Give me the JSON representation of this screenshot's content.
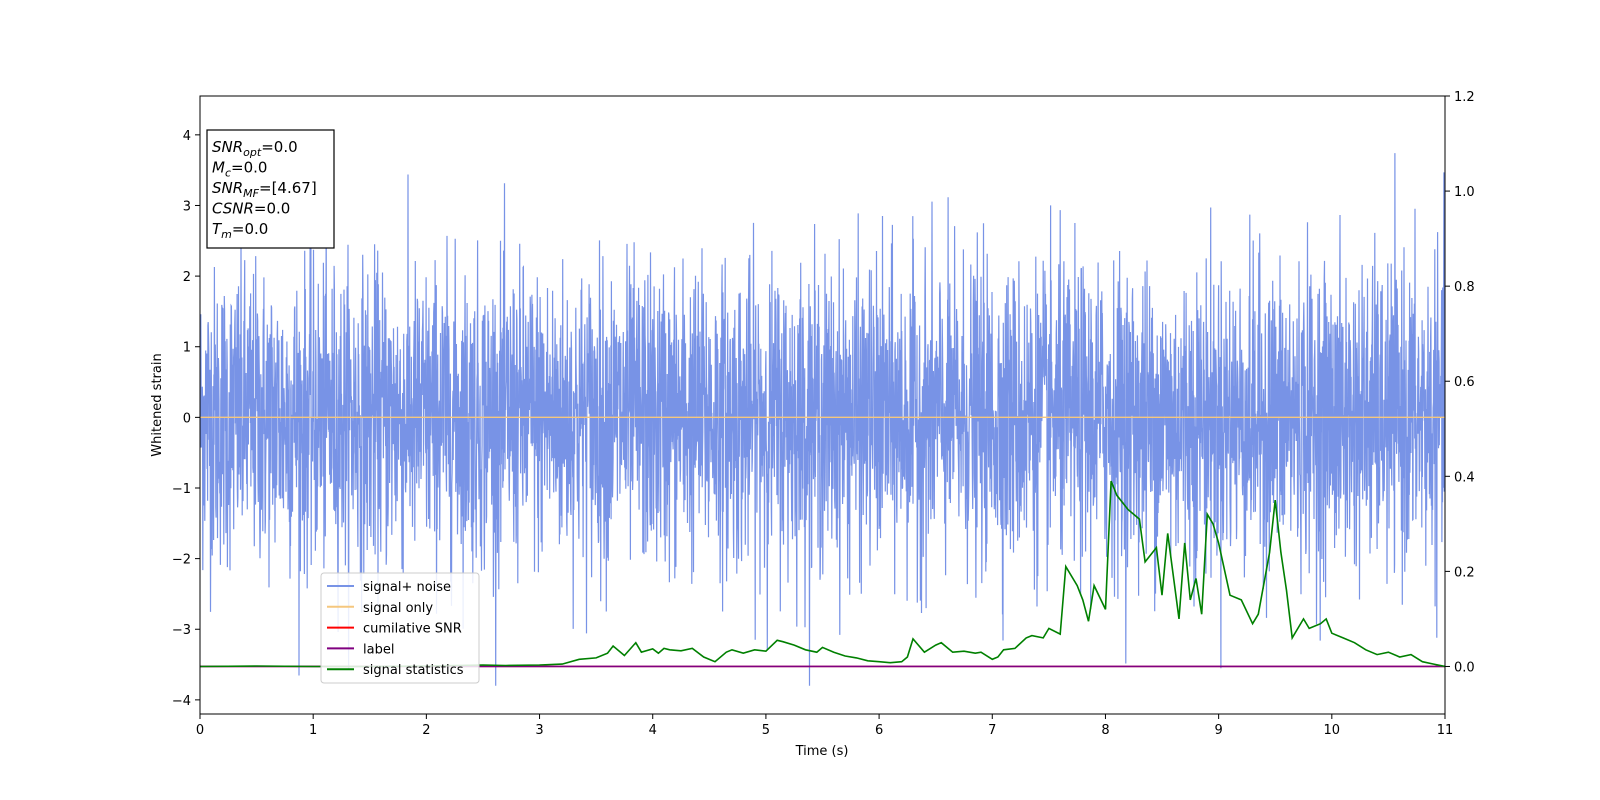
{
  "chart_data": {
    "type": "line",
    "xlabel": "Time (s)",
    "ylabel": "Whitened strain",
    "xlim": [
      0,
      11
    ],
    "ylim": [
      -4.2,
      4.55
    ],
    "ylim_right": [
      -0.1,
      1.2
    ],
    "xticks": [
      0,
      1,
      2,
      3,
      4,
      5,
      6,
      7,
      8,
      9,
      10,
      11
    ],
    "yticks": [
      -4,
      -3,
      -2,
      -1,
      0,
      1,
      2,
      3,
      4
    ],
    "yticks_right": [
      "0.0",
      "0.2",
      "0.4",
      "0.6",
      "0.8",
      "1.0",
      "1.2"
    ],
    "yticks_right_values": [
      0.0,
      0.2,
      0.4,
      0.6,
      0.8,
      1.0,
      1.2
    ],
    "grid": false,
    "legend_placement": "lower-left",
    "annotation": {
      "lines": [
        {
          "sym": "SNR",
          "sub": "opt",
          "val": "=0.0"
        },
        {
          "sym": "M",
          "sub": "c",
          "val": "=0.0"
        },
        {
          "sym": "SNR",
          "sub": "MF",
          "val": "=[4.67]"
        },
        {
          "sym": "CSNR",
          "sub": "",
          "val": "=0.0"
        },
        {
          "sym": "T",
          "sub": "m",
          "val": "=0.0"
        }
      ]
    },
    "series": [
      {
        "name": "signal+ noise",
        "color": "#7893e6",
        "axis": "left",
        "kind": "noise",
        "sample_rate_hz": 400,
        "peak_range": [
          -3.8,
          4.18
        ]
      },
      {
        "name": "signal only",
        "color": "#f5c77e",
        "axis": "left",
        "x": [
          0,
          11
        ],
        "y": [
          0,
          0
        ]
      },
      {
        "name": "cumilative SNR",
        "color": "#ff0000",
        "axis": "right",
        "x": [
          0,
          11
        ],
        "y": [
          0,
          0
        ]
      },
      {
        "name": "label",
        "color": "#800080",
        "axis": "right",
        "x": [
          0,
          11
        ],
        "y": [
          0,
          0
        ]
      },
      {
        "name": "signal statistics",
        "color": "#008000",
        "axis": "right",
        "x": [
          0,
          0.5,
          1,
          1.5,
          2,
          2.5,
          2.7,
          3,
          3.2,
          3.35,
          3.5,
          3.6,
          3.65,
          3.75,
          3.85,
          3.9,
          4.0,
          4.05,
          4.1,
          4.15,
          4.25,
          4.35,
          4.45,
          4.55,
          4.65,
          4.7,
          4.8,
          4.9,
          5.0,
          5.1,
          5.15,
          5.25,
          5.35,
          5.45,
          5.5,
          5.6,
          5.7,
          5.8,
          5.9,
          6.0,
          6.1,
          6.2,
          6.25,
          6.3,
          6.4,
          6.5,
          6.55,
          6.65,
          6.75,
          6.85,
          6.9,
          7.0,
          7.05,
          7.1,
          7.2,
          7.3,
          7.35,
          7.45,
          7.5,
          7.6,
          7.65,
          7.75,
          7.8,
          7.85,
          7.9,
          8.0,
          8.05,
          8.1,
          8.2,
          8.3,
          8.35,
          8.45,
          8.5,
          8.55,
          8.65,
          8.7,
          8.75,
          8.8,
          8.85,
          8.9,
          8.95,
          9.0,
          9.1,
          9.2,
          9.3,
          9.35,
          9.45,
          9.5,
          9.55,
          9.6,
          9.65,
          9.75,
          9.8,
          9.9,
          9.95,
          10.0,
          10.1,
          10.2,
          10.3,
          10.4,
          10.5,
          10.6,
          10.7,
          10.8,
          10.9,
          11.0
        ],
        "y": [
          0.0,
          0.001,
          0.0,
          0.0,
          0.001,
          0.003,
          0.002,
          0.003,
          0.005,
          0.015,
          0.018,
          0.028,
          0.043,
          0.023,
          0.05,
          0.03,
          0.037,
          0.028,
          0.038,
          0.035,
          0.033,
          0.038,
          0.02,
          0.01,
          0.03,
          0.035,
          0.028,
          0.035,
          0.032,
          0.055,
          0.052,
          0.045,
          0.035,
          0.03,
          0.04,
          0.03,
          0.022,
          0.018,
          0.012,
          0.01,
          0.008,
          0.01,
          0.02,
          0.058,
          0.03,
          0.045,
          0.05,
          0.03,
          0.032,
          0.028,
          0.03,
          0.015,
          0.02,
          0.035,
          0.038,
          0.06,
          0.065,
          0.06,
          0.08,
          0.068,
          0.21,
          0.17,
          0.14,
          0.095,
          0.17,
          0.12,
          0.39,
          0.36,
          0.33,
          0.31,
          0.22,
          0.25,
          0.15,
          0.28,
          0.1,
          0.26,
          0.14,
          0.185,
          0.11,
          0.32,
          0.3,
          0.26,
          0.15,
          0.14,
          0.09,
          0.11,
          0.24,
          0.35,
          0.24,
          0.16,
          0.06,
          0.1,
          0.08,
          0.09,
          0.1,
          0.07,
          0.06,
          0.05,
          0.035,
          0.025,
          0.03,
          0.02,
          0.025,
          0.01,
          0.005,
          0.0
        ]
      }
    ]
  }
}
